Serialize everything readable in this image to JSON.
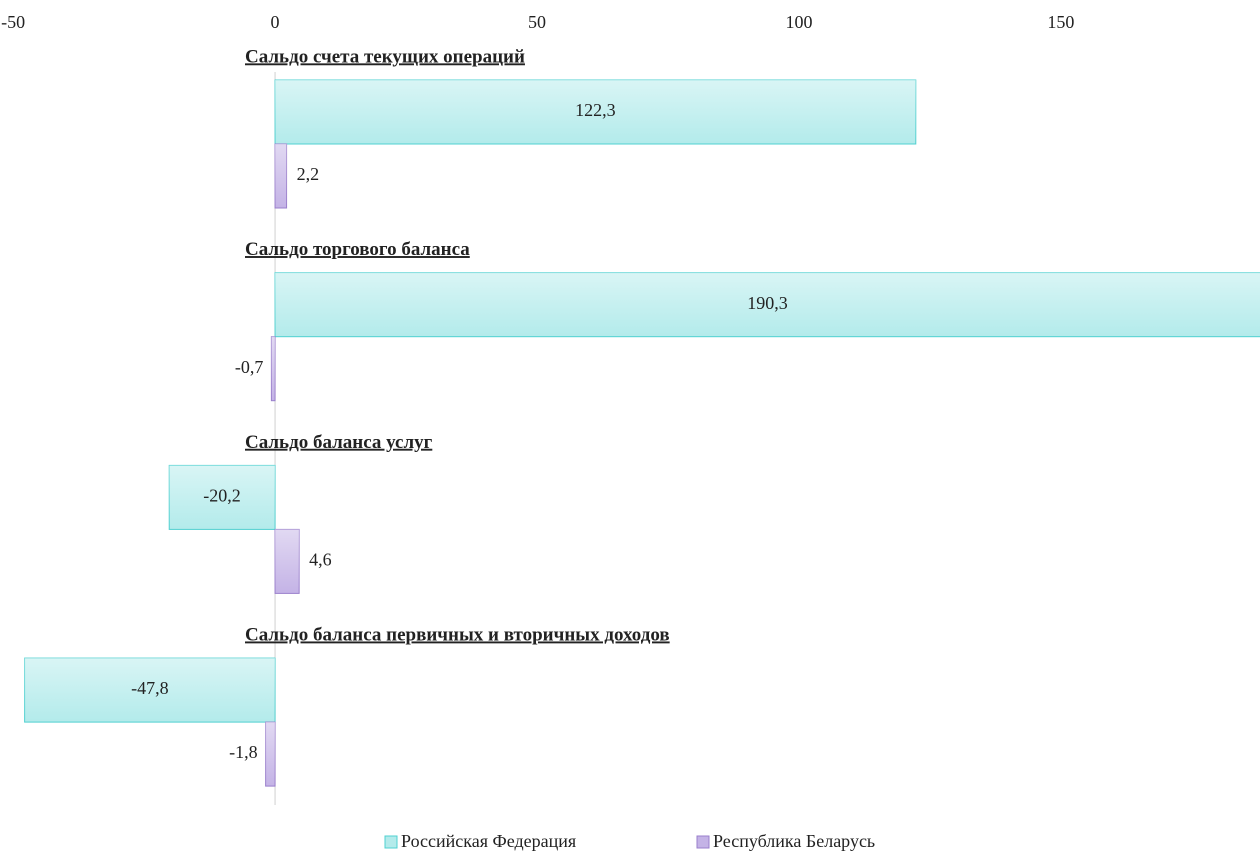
{
  "chart_data": {
    "type": "hbar",
    "categories": [
      "Сальдо счета текущих операций",
      "Сальдо торгового баланса",
      "Сальдо баланса услуг",
      "Сальдо баланса первичных и вторичных доходов"
    ],
    "series": [
      {
        "name": "Российская Федерация",
        "color": "#b3ebeb",
        "stroke": "#4fd0d0",
        "values": [
          122.3,
          190.3,
          -20.2,
          -47.8
        ],
        "value_labels": [
          "122,3",
          "190,3",
          "-20,2",
          "-47,8"
        ]
      },
      {
        "name": "Республика Беларусь",
        "color": "#c4b3e6",
        "stroke": "#9a7fcc",
        "values": [
          2.2,
          -0.7,
          4.6,
          -1.8
        ],
        "value_labels": [
          "2,2",
          "-0,7",
          "4,6",
          "-1,8"
        ]
      }
    ],
    "xlim": [
      -52.5,
      188
    ],
    "xticks": [
      -50,
      0,
      50,
      100,
      150
    ],
    "legend": "bottom"
  }
}
